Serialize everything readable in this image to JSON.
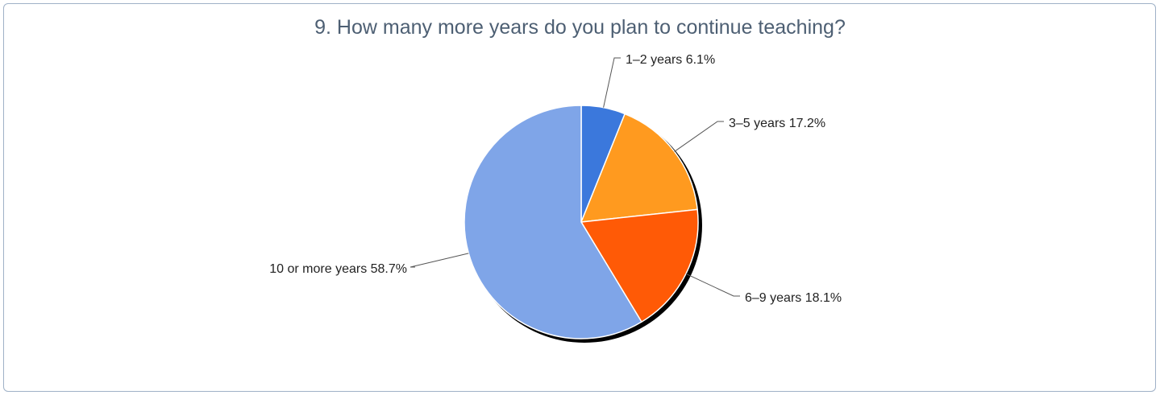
{
  "chart_data": {
    "type": "pie",
    "title": "9. How many more years do you plan to continue teaching?",
    "slices": [
      {
        "name": "1–2 years",
        "value": 6.1,
        "label": "1–2 years 6.1%",
        "color": "#3b78dc"
      },
      {
        "name": "3–5 years",
        "value": 17.2,
        "label": "3–5 years 17.2%",
        "color": "#ff9a1f"
      },
      {
        "name": "6–9 years",
        "value": 18.1,
        "label": "6–9 years 18.1%",
        "color": "#ff5a06"
      },
      {
        "name": "10 or more years",
        "value": 58.7,
        "label": "10 or more years 58.7%",
        "color": "#7fa5e8"
      }
    ],
    "start_angle": "12 o'clock",
    "direction": "clockwise",
    "legend": "none"
  }
}
